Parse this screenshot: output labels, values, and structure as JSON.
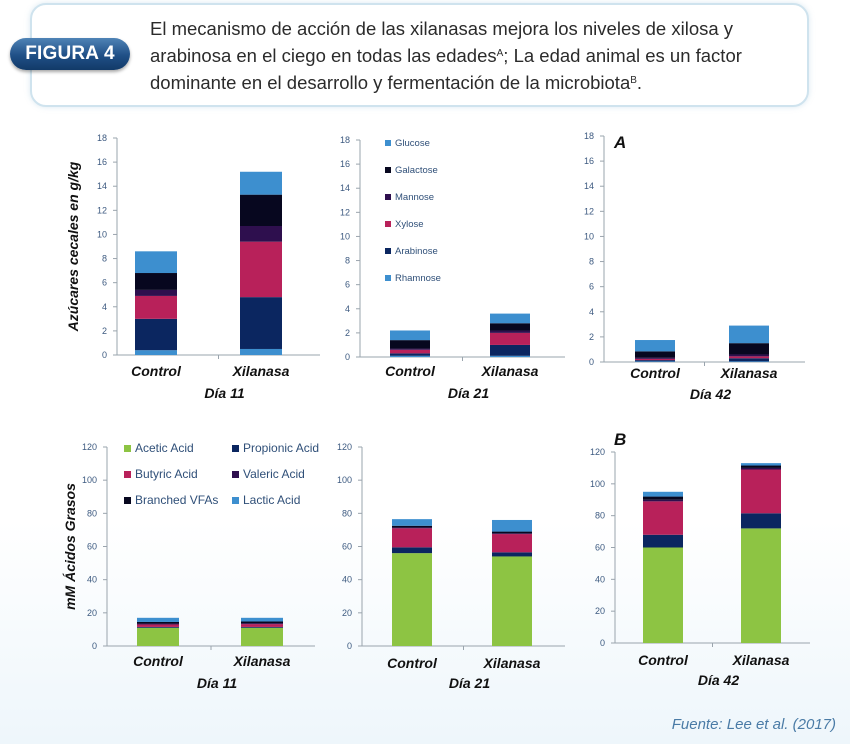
{
  "header": {
    "badge": "FIGURA 4",
    "line1": "El mecanismo de acción de las xilanasas mejora los niveles de xilosa y",
    "line2_a": "arabinosa en el ciego en todas las edades",
    "line2_sup": "A",
    "line2_b": "; La edad animal es un factor",
    "line3_a": "dominante en el desarrollo y fermentación de la microbiota",
    "line3_sup": "B",
    "line3_b": "."
  },
  "source": "Fuente: Lee et al. (2017)",
  "colors": {
    "Glucose": "#3d8fcf",
    "Galactose": "#07071f",
    "Mannose": "#2e0f4e",
    "Xylose": "#b8215a",
    "Arabinose": "#0b2660",
    "Rhamnose": "#3d8fcf",
    "Acetic Acid": "#8dc443",
    "Propionic Acid": "#0b2660",
    "Butyric Acid": "#b8215a",
    "Valeric Acid": "#2e0f4e",
    "Branched VFAs": "#07071f",
    "Lactic Acid": "#3d8fcf"
  },
  "chart_data": [
    {
      "id": "sugar-d11",
      "type": "bar",
      "stacked": true,
      "title": "Día 11",
      "ylabel": "Azúcares cecales en g/kg",
      "ylim": [
        0,
        18
      ],
      "yticks": [
        0,
        2,
        4,
        6,
        8,
        10,
        12,
        14,
        16,
        18
      ],
      "categories": [
        "Control",
        "Xilanasa"
      ],
      "series": [
        {
          "name": "Rhamnose",
          "values": [
            0.4,
            0.5
          ]
        },
        {
          "name": "Arabinose",
          "values": [
            2.6,
            4.3
          ]
        },
        {
          "name": "Xylose",
          "values": [
            1.9,
            4.6
          ]
        },
        {
          "name": "Mannose",
          "values": [
            0.5,
            1.3
          ]
        },
        {
          "name": "Galactose",
          "values": [
            1.4,
            2.6
          ]
        },
        {
          "name": "Glucose",
          "values": [
            1.8,
            1.9
          ]
        }
      ]
    },
    {
      "id": "sugar-d21",
      "type": "bar",
      "stacked": true,
      "title": "Día 21",
      "ylim": [
        0,
        18
      ],
      "yticks": [
        0,
        2,
        4,
        6,
        8,
        10,
        12,
        14,
        16,
        18
      ],
      "categories": [
        "Control",
        "Xilanasa"
      ],
      "legend": [
        "Glucose",
        "Galactose",
        "Mannose",
        "Xylose",
        "Arabinose",
        "Rhamnose"
      ],
      "series": [
        {
          "name": "Rhamnose",
          "values": [
            0.1,
            0.1
          ]
        },
        {
          "name": "Arabinose",
          "values": [
            0.2,
            0.9
          ]
        },
        {
          "name": "Xylose",
          "values": [
            0.3,
            1.0
          ]
        },
        {
          "name": "Mannose",
          "values": [
            0.1,
            0.2
          ]
        },
        {
          "name": "Galactose",
          "values": [
            0.7,
            0.6
          ]
        },
        {
          "name": "Glucose",
          "values": [
            0.8,
            0.8
          ]
        }
      ]
    },
    {
      "id": "sugar-d42",
      "type": "bar",
      "stacked": true,
      "title": "Día 42",
      "panel": "A",
      "ylim": [
        0,
        18
      ],
      "yticks": [
        0,
        2,
        4,
        6,
        8,
        10,
        12,
        14,
        16,
        18
      ],
      "categories": [
        "Control",
        "Xilanasa"
      ],
      "series": [
        {
          "name": "Rhamnose",
          "values": [
            0.05,
            0.05
          ]
        },
        {
          "name": "Arabinose",
          "values": [
            0.1,
            0.25
          ]
        },
        {
          "name": "Xylose",
          "values": [
            0.1,
            0.15
          ]
        },
        {
          "name": "Mannose",
          "values": [
            0.1,
            0.15
          ]
        },
        {
          "name": "Galactose",
          "values": [
            0.5,
            0.9
          ]
        },
        {
          "name": "Glucose",
          "values": [
            0.9,
            1.4
          ]
        }
      ]
    },
    {
      "id": "vfa-d11",
      "type": "bar",
      "stacked": true,
      "title": "Día 11",
      "ylabel": "mM Ácidos Grasos",
      "ylim": [
        0,
        120
      ],
      "yticks": [
        0,
        20,
        40,
        60,
        80,
        100,
        120
      ],
      "categories": [
        "Control",
        "Xilanasa"
      ],
      "legend": [
        "Acetic Acid",
        "Propionic Acid",
        "Butyric Acid",
        "Valeric Acid",
        "Branched VFAs",
        "Lactic Acid"
      ],
      "series": [
        {
          "name": "Acetic Acid",
          "values": [
            11,
            11
          ]
        },
        {
          "name": "Propionic Acid",
          "values": [
            0.5,
            0.5
          ]
        },
        {
          "name": "Butyric Acid",
          "values": [
            1.5,
            1.7
          ]
        },
        {
          "name": "Valeric Acid",
          "values": [
            0.6,
            0.6
          ]
        },
        {
          "name": "Branched VFAs",
          "values": [
            0.9,
            1.0
          ]
        },
        {
          "name": "Lactic Acid",
          "values": [
            2.5,
            2.2
          ]
        }
      ]
    },
    {
      "id": "vfa-d21",
      "type": "bar",
      "stacked": true,
      "title": "Día 21",
      "ylim": [
        0,
        120
      ],
      "yticks": [
        0,
        20,
        40,
        60,
        80,
        100,
        120
      ],
      "categories": [
        "Control",
        "Xilanasa"
      ],
      "series": [
        {
          "name": "Acetic Acid",
          "values": [
            56,
            54
          ]
        },
        {
          "name": "Propionic Acid",
          "values": [
            3.5,
            2.5
          ]
        },
        {
          "name": "Butyric Acid",
          "values": [
            11.5,
            11
          ]
        },
        {
          "name": "Valeric Acid",
          "values": [
            0.5,
            0.5
          ]
        },
        {
          "name": "Branched VFAs",
          "values": [
            1,
            1
          ]
        },
        {
          "name": "Lactic Acid",
          "values": [
            4,
            7
          ]
        }
      ]
    },
    {
      "id": "vfa-d42",
      "type": "bar",
      "stacked": true,
      "title": "Día 42",
      "panel": "B",
      "ylim": [
        0,
        120
      ],
      "yticks": [
        0,
        20,
        40,
        60,
        80,
        100,
        120
      ],
      "categories": [
        "Control",
        "Xilanasa"
      ],
      "series": [
        {
          "name": "Acetic Acid",
          "values": [
            60,
            72
          ]
        },
        {
          "name": "Propionic Acid",
          "values": [
            8,
            9.5
          ]
        },
        {
          "name": "Butyric Acid",
          "values": [
            21,
            27.5
          ]
        },
        {
          "name": "Valeric Acid",
          "values": [
            1,
            1
          ]
        },
        {
          "name": "Branched VFAs",
          "values": [
            2,
            1.5
          ]
        },
        {
          "name": "Lactic Acid",
          "values": [
            3,
            1.5
          ]
        }
      ]
    }
  ]
}
